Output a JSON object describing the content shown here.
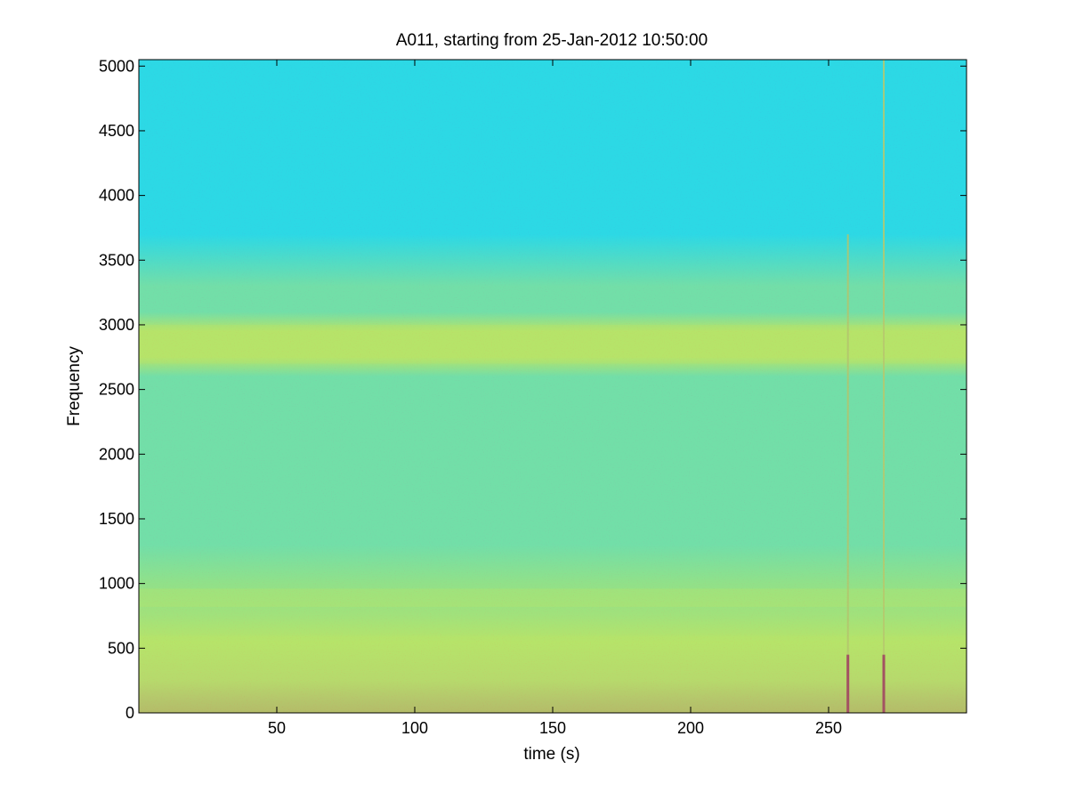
{
  "chart_data": {
    "type": "heatmap",
    "title": "A011, starting from 25-Jan-2012 10:50:00",
    "xlabel": "time (s)",
    "ylabel": "Frequency",
    "xlim": [
      0,
      300
    ],
    "ylim": [
      0,
      5050
    ],
    "x_ticks": [
      50,
      100,
      150,
      200,
      250
    ],
    "x_tick_labels": [
      "50",
      "100",
      "150",
      "200",
      "250"
    ],
    "y_ticks": [
      0,
      500,
      1000,
      1500,
      2000,
      2500,
      3000,
      3500,
      4000,
      4500,
      5000
    ],
    "y_tick_labels": [
      "0",
      "500",
      "1000",
      "1500",
      "2000",
      "2500",
      "3000",
      "3500",
      "4000",
      "4500",
      "5000"
    ],
    "colormap": "jet",
    "colors": {
      "low": "#22e8d8",
      "mid": "#8ef07a",
      "high": "#f6f81a",
      "peak": "#d8180e"
    },
    "features": {
      "high_energy_bands_hz": [
        [
          0,
          600
        ],
        [
          820,
          960
        ],
        [
          2700,
          3000
        ]
      ],
      "broadband_transients_s": [
        257,
        270
      ],
      "transients_peak_freq_hz": [
        3700,
        5050
      ]
    }
  }
}
